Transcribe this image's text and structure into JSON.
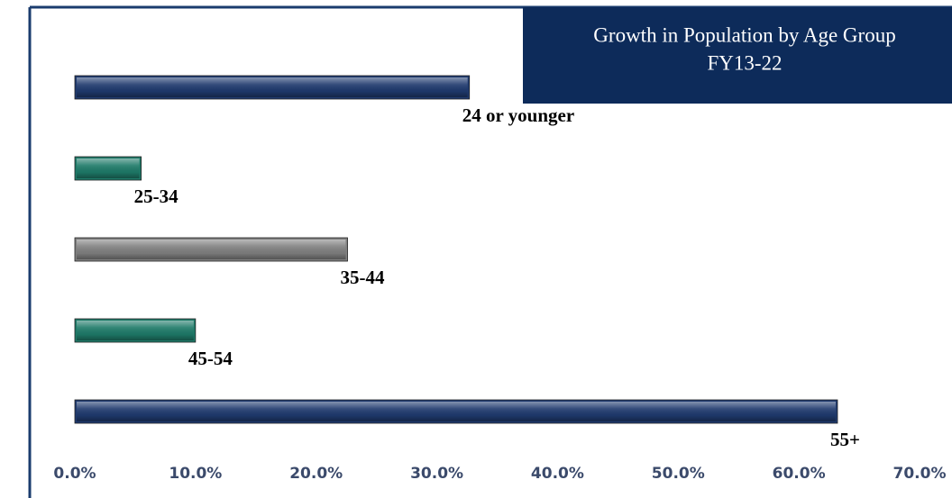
{
  "chart_data": {
    "type": "barh",
    "title": "Growth in Population by Age Group",
    "subtitle": "FY13-22",
    "categories": [
      "24 or younger",
      "25-34",
      "35-44",
      "45-54",
      "55+"
    ],
    "values": [
      32.7,
      5.5,
      22.6,
      10.0,
      63.2
    ],
    "colors": [
      "#1f3a6e",
      "#1e7a68",
      "#7f7f7f",
      "#1e7a68",
      "#1f3a6e"
    ],
    "xlim": [
      0,
      70
    ],
    "xticks": [
      {
        "value": 0,
        "label": "0.0%"
      },
      {
        "value": 10,
        "label": "10.0%"
      },
      {
        "value": 20,
        "label": "20.0%"
      },
      {
        "value": 30,
        "label": "30.0%"
      },
      {
        "value": 40,
        "label": "40.0%"
      },
      {
        "value": 50,
        "label": "50.0%"
      },
      {
        "value": 60,
        "label": "60.0%"
      },
      {
        "value": 70,
        "label": "70.0%"
      }
    ],
    "grid": false
  }
}
